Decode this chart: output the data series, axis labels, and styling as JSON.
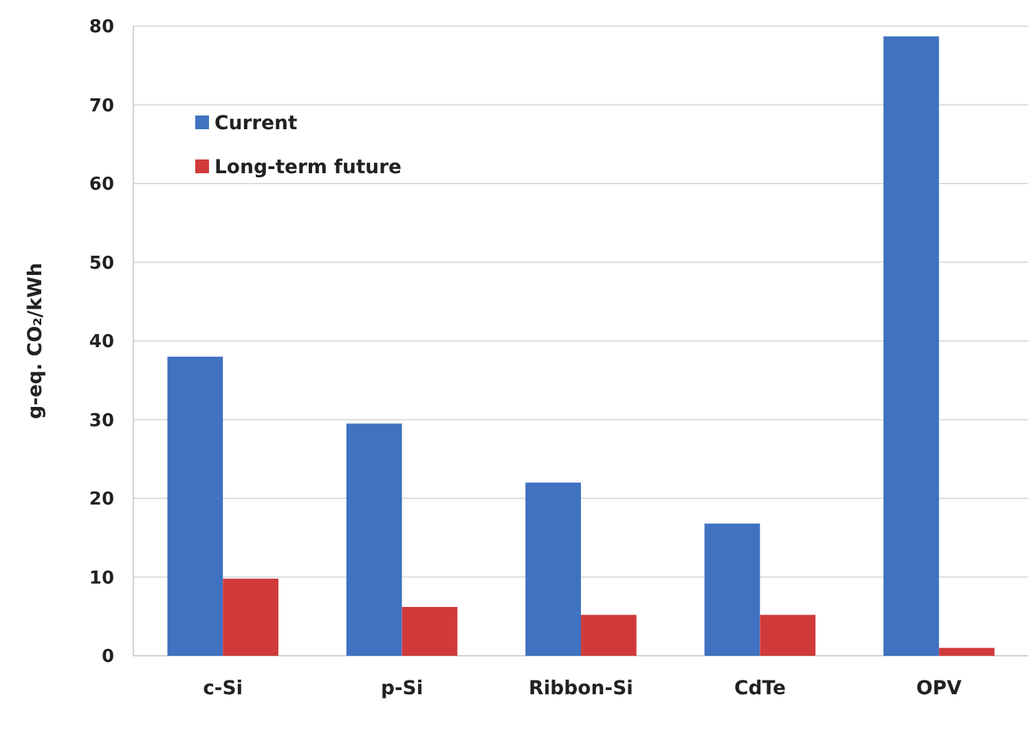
{
  "chart_data": {
    "type": "bar",
    "ylabel": "g-eq. CO₂/kWh",
    "categories": [
      "c-Si",
      "p-Si",
      "Ribbon-Si",
      "CdTe",
      "OPV"
    ],
    "series": [
      {
        "name": "Current",
        "color": "#3f72c0",
        "values": [
          38,
          29.5,
          22,
          16.8,
          78.7
        ]
      },
      {
        "name": "Long-term future",
        "color": "#d03a3a",
        "values": [
          9.8,
          6.2,
          5.2,
          5.2,
          1.0
        ]
      }
    ],
    "ylim": [
      0,
      80
    ],
    "yticks": [
      0,
      10,
      20,
      30,
      40,
      50,
      60,
      70,
      80
    ],
    "grid": "y",
    "legend": "top left"
  }
}
